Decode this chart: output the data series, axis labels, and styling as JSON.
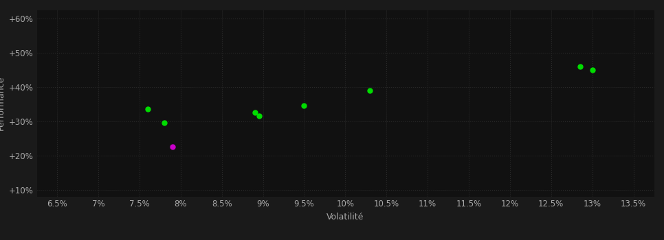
{
  "background_color": "#1a1a1a",
  "plot_bg_color": "#111111",
  "grid_color": "#2a2a2a",
  "text_color": "#aaaaaa",
  "xlabel": "Volatilité",
  "ylabel": "Performance",
  "xlim": [
    0.0625,
    0.1375
  ],
  "ylim": [
    0.08,
    0.625
  ],
  "xticks": [
    0.065,
    0.07,
    0.075,
    0.08,
    0.085,
    0.09,
    0.095,
    0.1,
    0.105,
    0.11,
    0.115,
    0.12,
    0.125,
    0.13,
    0.135
  ],
  "yticks": [
    0.1,
    0.2,
    0.3,
    0.4,
    0.5,
    0.6
  ],
  "xtick_labels": [
    "6.5%",
    "7%",
    "7.5%",
    "8%",
    "8.5%",
    "9%",
    "9.5%",
    "10%",
    "10.5%",
    "11%",
    "11.5%",
    "12%",
    "12.5%",
    "13%",
    "13.5%"
  ],
  "ytick_labels": [
    "+10%",
    "+20%",
    "+30%",
    "+40%",
    "+50%",
    "+60%"
  ],
  "green_points": [
    [
      0.076,
      0.335
    ],
    [
      0.078,
      0.295
    ],
    [
      0.089,
      0.325
    ],
    [
      0.0895,
      0.315
    ],
    [
      0.095,
      0.345
    ],
    [
      0.103,
      0.39
    ],
    [
      0.1285,
      0.46
    ],
    [
      0.13,
      0.45
    ]
  ],
  "magenta_points": [
    [
      0.079,
      0.225
    ]
  ],
  "green_color": "#00dd00",
  "magenta_color": "#cc00cc",
  "marker_size": 5,
  "font_size": 8.5,
  "xlabel_fontsize": 9,
  "ylabel_fontsize": 9
}
